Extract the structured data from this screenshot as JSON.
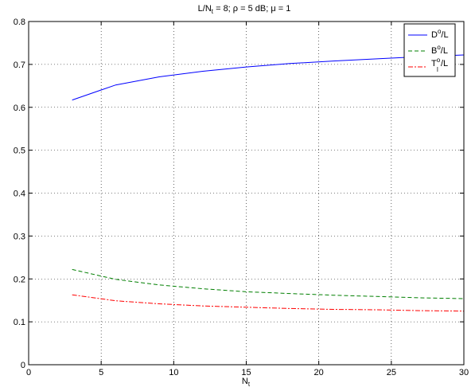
{
  "chart_data": {
    "type": "line",
    "title": "L/N",
    "title_sub": "t",
    "title_rest": " = 8; ρ = 5 dB; μ = 1",
    "xlabel": "N",
    "xlabel_sub": "t",
    "ylabel": "",
    "xlim": [
      0,
      30
    ],
    "ylim": [
      0,
      0.8
    ],
    "x_ticks": [
      "0",
      "5",
      "10",
      "15",
      "20",
      "25",
      "30"
    ],
    "x_tick_values": [
      0,
      5,
      10,
      15,
      20,
      25,
      30
    ],
    "y_ticks": [
      "0",
      "0.1",
      "0.2",
      "0.3",
      "0.4",
      "0.5",
      "0.6",
      "0.7",
      "0.8"
    ],
    "y_tick_values": [
      0,
      0.1,
      0.2,
      0.3,
      0.4,
      0.5,
      0.6,
      0.7,
      0.8
    ],
    "grid": true,
    "legend_position": "top-right",
    "x": [
      3,
      6,
      9,
      12,
      15,
      18,
      21,
      24,
      27,
      30
    ],
    "series": [
      {
        "name": "D",
        "name_sup": "o",
        "name_rest": "/L",
        "color": "#0000ff",
        "dash": "solid",
        "values": [
          0.617,
          0.652,
          0.671,
          0.684,
          0.694,
          0.702,
          0.708,
          0.713,
          0.718,
          0.722
        ]
      },
      {
        "name": "B",
        "name_sup": "o",
        "name_rest": "/L",
        "color": "#007f00",
        "dash": "dashed",
        "values": [
          0.222,
          0.199,
          0.186,
          0.177,
          0.17,
          0.166,
          0.162,
          0.159,
          0.156,
          0.154
        ]
      },
      {
        "name": "T",
        "name_sub": "l",
        "name_sup": "o",
        "name_rest": "/L",
        "color": "#ff0000",
        "dash": "dashdot",
        "values": [
          0.163,
          0.149,
          0.142,
          0.137,
          0.134,
          0.131,
          0.129,
          0.128,
          0.126,
          0.125
        ]
      }
    ]
  }
}
